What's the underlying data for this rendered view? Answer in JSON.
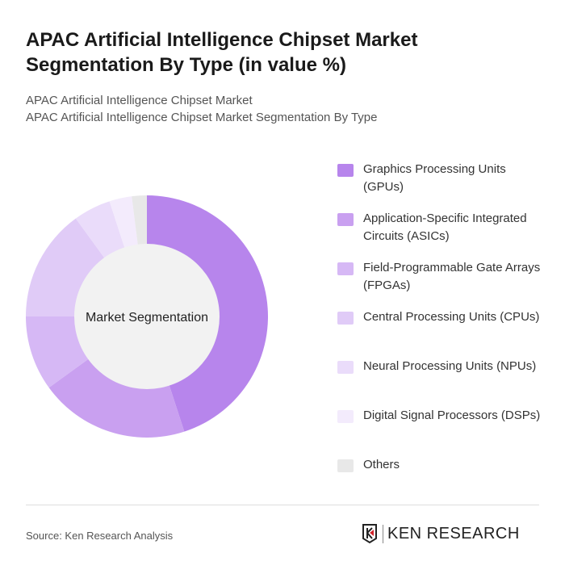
{
  "title": "APAC Artificial Intelligence Chipset Market Segmentation By Type (in value %)",
  "subtitle1": "APAC Artificial Intelligence Chipset Market",
  "subtitle2": "APAC Artificial Intelligence Chipset Market Segmentation By Type",
  "source": "Source: Ken Research Analysis",
  "logo": "KEN RESEARCH",
  "chart_data": {
    "type": "pie",
    "variant": "donut",
    "center_label": "Market Segmentation",
    "legend_position": "right",
    "categories": [
      "Graphics Processing Units (GPUs)",
      "Application-Specific Integrated Circuits (ASICs)",
      "Field-Programmable Gate Arrays (FPGAs)",
      "Central Processing Units (CPUs)",
      "Neural Processing Units (NPUs)",
      "Digital Signal Processors (DSPs)",
      "Others"
    ],
    "values": [
      45,
      20,
      10,
      15,
      5,
      3,
      2
    ],
    "colors": [
      "#b785ec",
      "#c9a0f0",
      "#d6b8f5",
      "#e0cbf7",
      "#eadcfa",
      "#f3ebfc",
      "#e8e8e8"
    ]
  }
}
